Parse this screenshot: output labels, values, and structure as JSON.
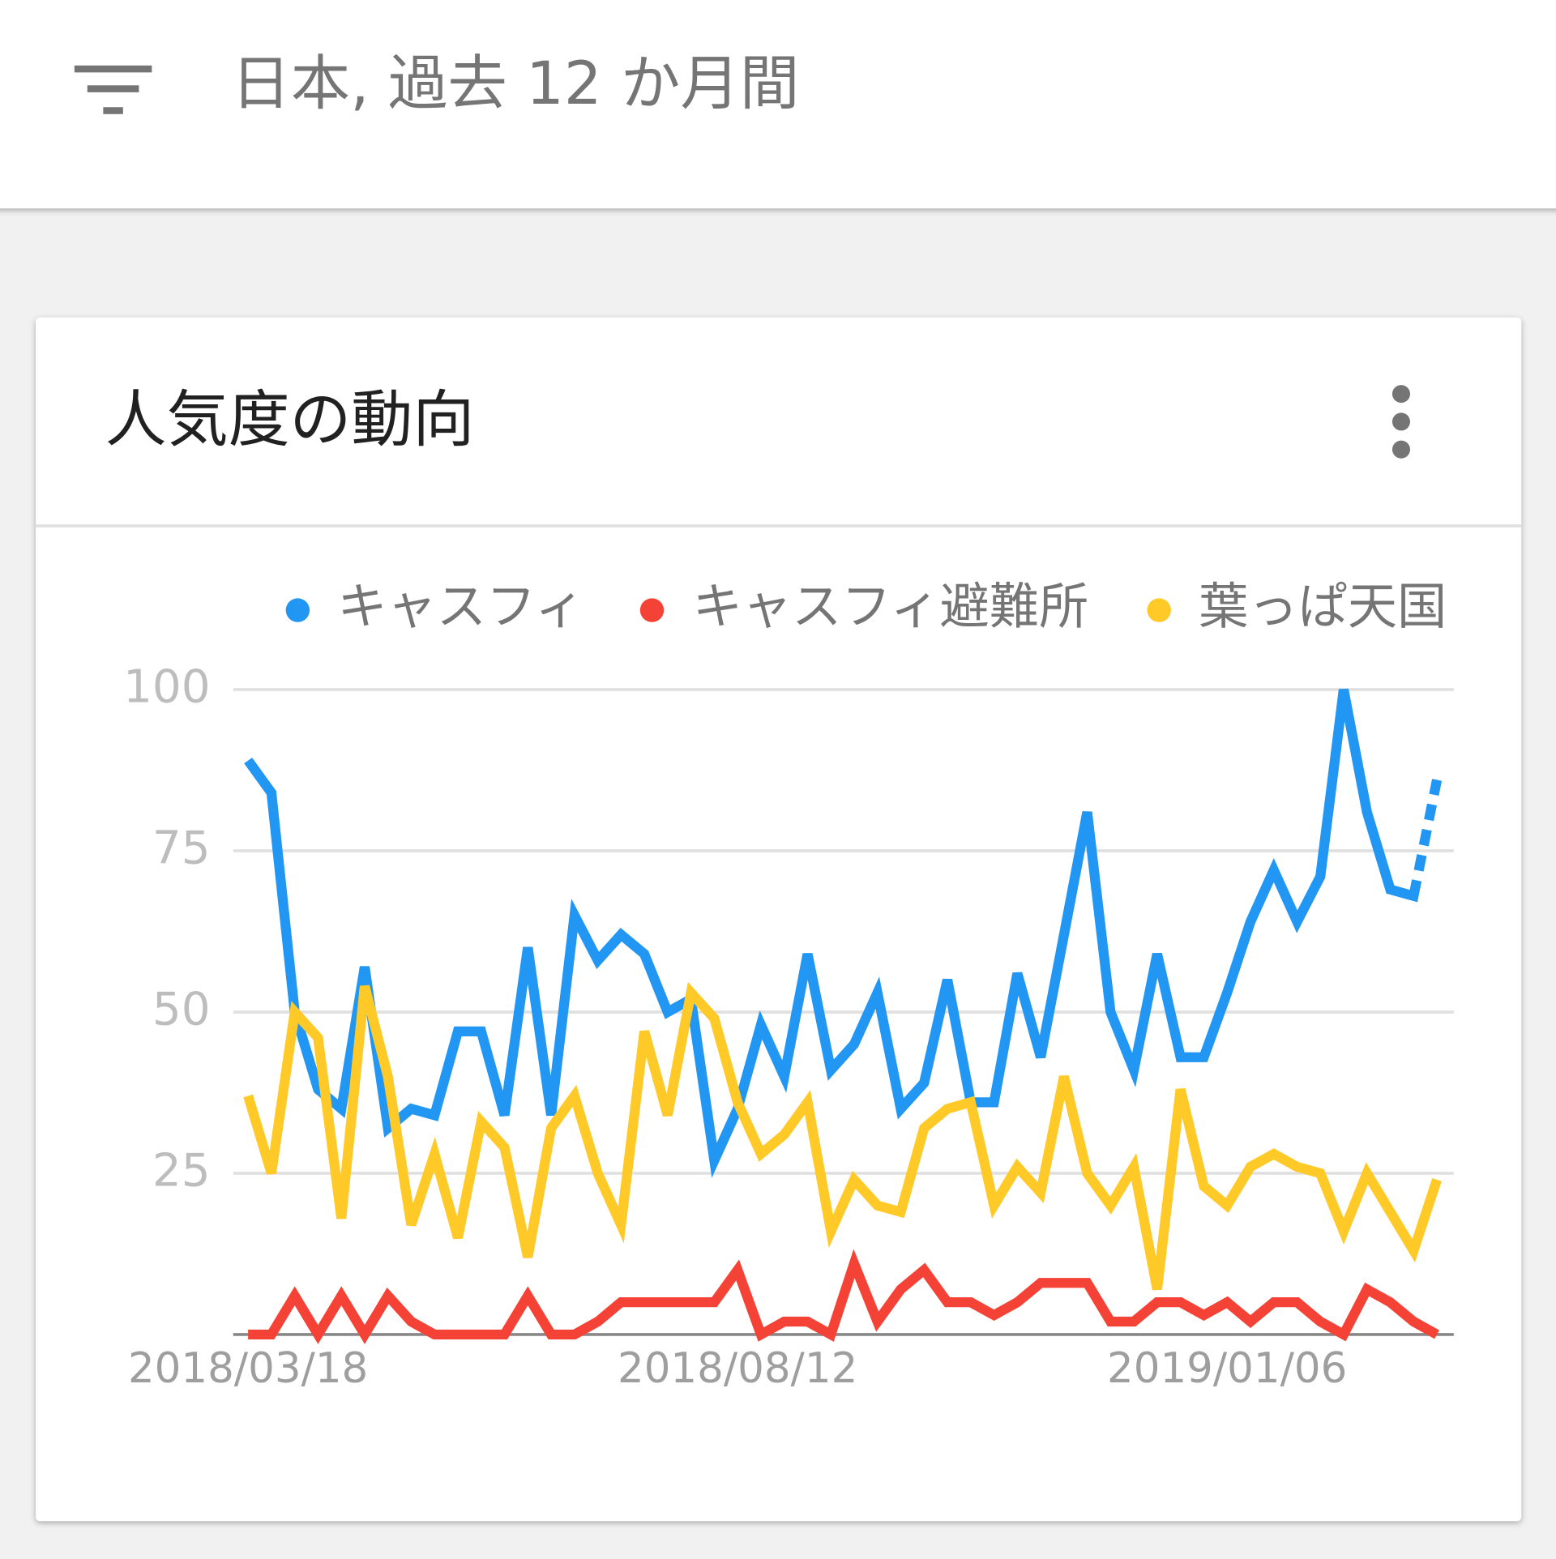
{
  "header": {
    "filter_text": "日本, 過去 12 か月間"
  },
  "card": {
    "title": "人気度の動向"
  },
  "chart_data": {
    "type": "line",
    "categories": [
      "2018/03/18",
      null,
      null,
      null,
      null,
      null,
      null,
      null,
      null,
      null,
      null,
      null,
      null,
      null,
      null,
      null,
      null,
      null,
      null,
      null,
      null,
      "2018/08/12",
      null,
      null,
      null,
      null,
      null,
      null,
      null,
      null,
      null,
      null,
      null,
      null,
      null,
      null,
      null,
      null,
      null,
      null,
      null,
      null,
      "2019/01/06",
      null,
      null,
      null,
      null,
      null,
      null,
      null,
      null,
      null
    ],
    "series": [
      {
        "name": "キャスフィ",
        "color": "#2196f3",
        "values": [
          89,
          84,
          50,
          38,
          35,
          57,
          32,
          35,
          34,
          47,
          47,
          34,
          60,
          34,
          65,
          58,
          62,
          59,
          50,
          52,
          27,
          35,
          48,
          40,
          59,
          41,
          45,
          53,
          35,
          39,
          55,
          36,
          36,
          56,
          43,
          62,
          81,
          50,
          41,
          59,
          43,
          43,
          53,
          64,
          72,
          64,
          71,
          100,
          81,
          69,
          68,
          86
        ]
      },
      {
        "name": "キャスフィ避難所",
        "color": "#f44336",
        "values": [
          0,
          0,
          6,
          0,
          6,
          0,
          6,
          2,
          0,
          0,
          0,
          0,
          6,
          0,
          0,
          2,
          5,
          5,
          5,
          5,
          5,
          10,
          0,
          2,
          2,
          0,
          11,
          2,
          7,
          10,
          5,
          5,
          3,
          5,
          8,
          8,
          8,
          2,
          2,
          5,
          5,
          3,
          5,
          2,
          5,
          5,
          2,
          0,
          7,
          5,
          2,
          0
        ]
      },
      {
        "name": "葉っぱ天国",
        "color": "#ffca28",
        "values": [
          37,
          25,
          50,
          46,
          18,
          54,
          40,
          17,
          28,
          15,
          33,
          29,
          12,
          32,
          37,
          25,
          17,
          47,
          34,
          53,
          49,
          36,
          28,
          31,
          36,
          16,
          24,
          20,
          19,
          32,
          35,
          36,
          20,
          26,
          22,
          40,
          25,
          20,
          26,
          7,
          38,
          23,
          20,
          26,
          28,
          26,
          25,
          16,
          25,
          19,
          13,
          24
        ]
      }
    ],
    "ylim": [
      0,
      100
    ],
    "yticks": [
      25,
      50,
      75,
      100
    ],
    "grid": true
  }
}
